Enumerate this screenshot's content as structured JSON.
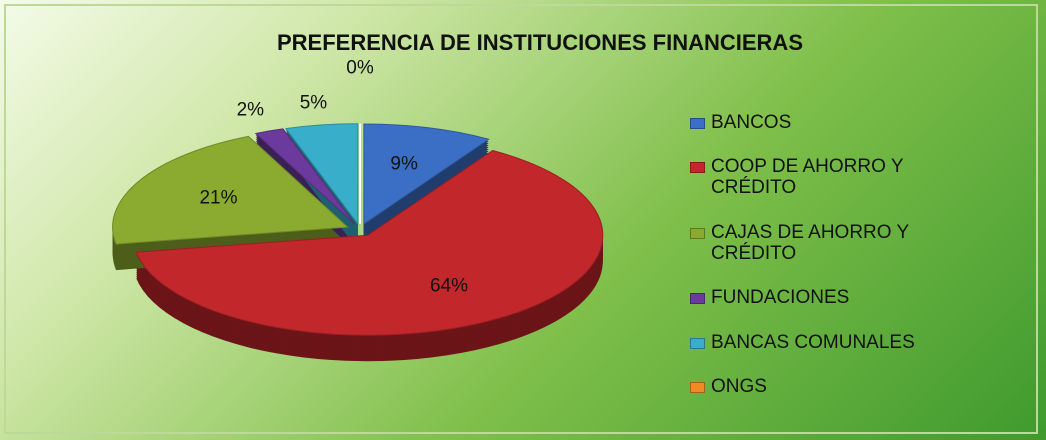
{
  "chart_data": {
    "type": "pie",
    "title": "PREFERENCIA DE INSTITUCIONES FINANCIERAS",
    "categories": [
      "BANCOS",
      "COOP DE AHORRO Y CRÉDITO",
      "CAJAS DE AHORRO Y CRÉDITO",
      "FUNDACIONES",
      "BANCAS COMUNALES",
      "ONGS"
    ],
    "values": [
      9,
      64,
      21,
      2,
      5,
      0
    ],
    "value_labels": [
      "9%",
      "64%",
      "21%",
      "2%",
      "5%",
      "0%"
    ],
    "colors": [
      "#3b6fc6",
      "#c2272b",
      "#8bab30",
      "#6b3a9c",
      "#38aecb",
      "#f08a22"
    ],
    "legend": "right"
  }
}
